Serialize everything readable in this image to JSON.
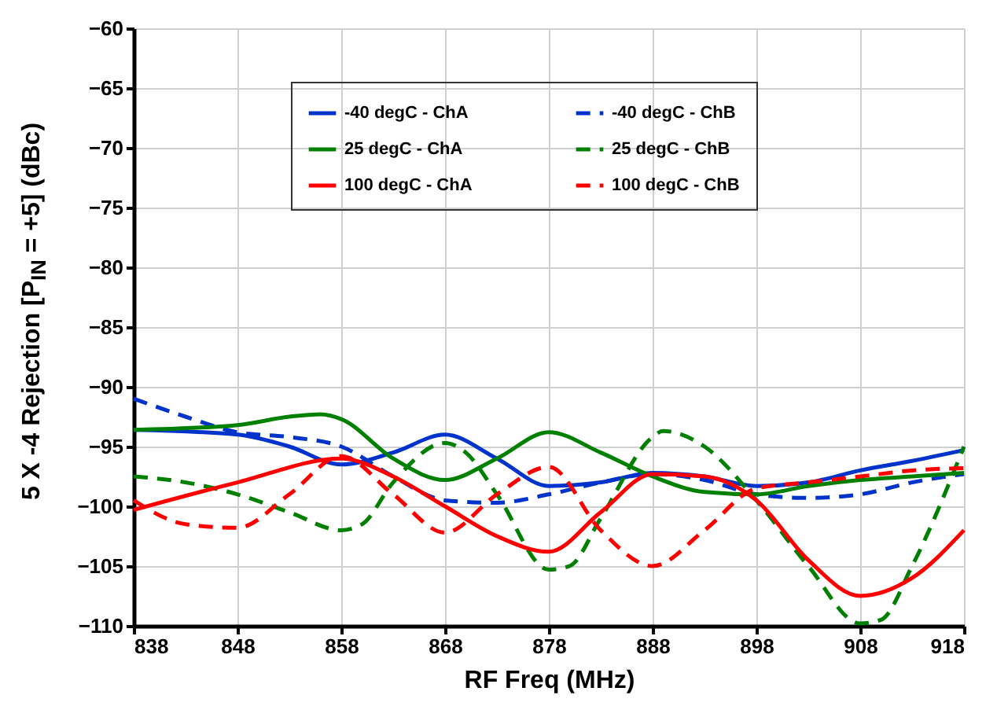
{
  "chart_data": {
    "type": "line",
    "xlabel": "RF Freq (MHz)",
    "ylabel": "5 X -4 Rejection [P$_{IN}$ = +5] (dBc)",
    "xlim": [
      838,
      918
    ],
    "xticks": [
      838,
      848,
      858,
      868,
      878,
      888,
      898,
      908,
      918
    ],
    "ylim": [
      -110,
      -60
    ],
    "yticks": [
      -110,
      -105,
      -100,
      -95,
      -90,
      -85,
      -80,
      -75,
      -70,
      -65,
      -60
    ],
    "grid": true,
    "legend": "top",
    "marker": "none",
    "series": [
      {
        "name": "-40 degC - ChA",
        "color": "#0033cc",
        "line_style": "solid",
        "x": [
          838,
          848,
          853,
          858,
          863,
          868,
          873,
          878,
          883,
          888,
          893,
          898,
          903,
          908,
          913,
          918
        ],
        "values": [
          -93.6,
          -94,
          -95,
          -96.5,
          -95.5,
          -94,
          -96,
          -98.3,
          -98,
          -97.2,
          -97.5,
          -98.3,
          -98,
          -97,
          -96.2,
          -95.3
        ]
      },
      {
        "name": "-40 degC - ChB",
        "color": "#0033cc",
        "line_style": "dashed",
        "x": [
          838,
          843,
          848,
          853,
          858,
          863,
          868,
          873,
          878,
          883,
          888,
          893,
          898,
          903,
          908,
          913,
          918
        ],
        "values": [
          -91,
          -92.5,
          -93.8,
          -94.2,
          -95,
          -97.5,
          -99.5,
          -99.7,
          -99,
          -98,
          -97.3,
          -97.8,
          -99,
          -99.3,
          -99,
          -98,
          -97.3
        ]
      },
      {
        "name": "25 degC - ChA",
        "color": "#008000",
        "line_style": "solid",
        "x": [
          838,
          848,
          853,
          856,
          858,
          863,
          868,
          873,
          878,
          883,
          888,
          893,
          898,
          903,
          908,
          913,
          918
        ],
        "values": [
          -93.6,
          -93.2,
          -92.5,
          -92.3,
          -92.7,
          -96,
          -97.8,
          -96,
          -93.8,
          -95.5,
          -97.5,
          -98.8,
          -99,
          -98.3,
          -97.8,
          -97.5,
          -97.2
        ]
      },
      {
        "name": "25 degC - ChB",
        "color": "#008000",
        "line_style": "dashed",
        "x": [
          838,
          843,
          848,
          853,
          858,
          860,
          863,
          868,
          870,
          873,
          878,
          880,
          883,
          888,
          889,
          893,
          898,
          903,
          908,
          910,
          913,
          918
        ],
        "values": [
          -97.5,
          -98,
          -99,
          -100.5,
          -102,
          -101.5,
          -98,
          -94.7,
          -95.5,
          -99,
          -105.3,
          -105,
          -101,
          -94.2,
          -93.7,
          -95,
          -99.5,
          -105,
          -109.8,
          -109.5,
          -105,
          -95
        ]
      },
      {
        "name": "100 degC - ChA",
        "color": "#ff0000",
        "line_style": "solid",
        "x": [
          838,
          848,
          858,
          863,
          868,
          873,
          878,
          883,
          888,
          893,
          898,
          903,
          908,
          913,
          918
        ],
        "values": [
          -100.3,
          -98,
          -96,
          -97.5,
          -100,
          -102.5,
          -103.8,
          -100.5,
          -97.3,
          -97.5,
          -99.5,
          -104.5,
          -107.5,
          -106,
          -102
        ]
      },
      {
        "name": "100 degC - ChB",
        "color": "#ff0000",
        "line_style": "dashed",
        "x": [
          838,
          843,
          848,
          853,
          858,
          863,
          868,
          873,
          878,
          883,
          888,
          893,
          898,
          903,
          908,
          913,
          918
        ],
        "values": [
          -99.5,
          -101.5,
          -101.8,
          -99,
          -95.8,
          -99,
          -102.2,
          -99,
          -96.7,
          -102,
          -105,
          -102,
          -98.5,
          -98,
          -97.5,
          -97,
          -96.8
        ]
      }
    ]
  }
}
